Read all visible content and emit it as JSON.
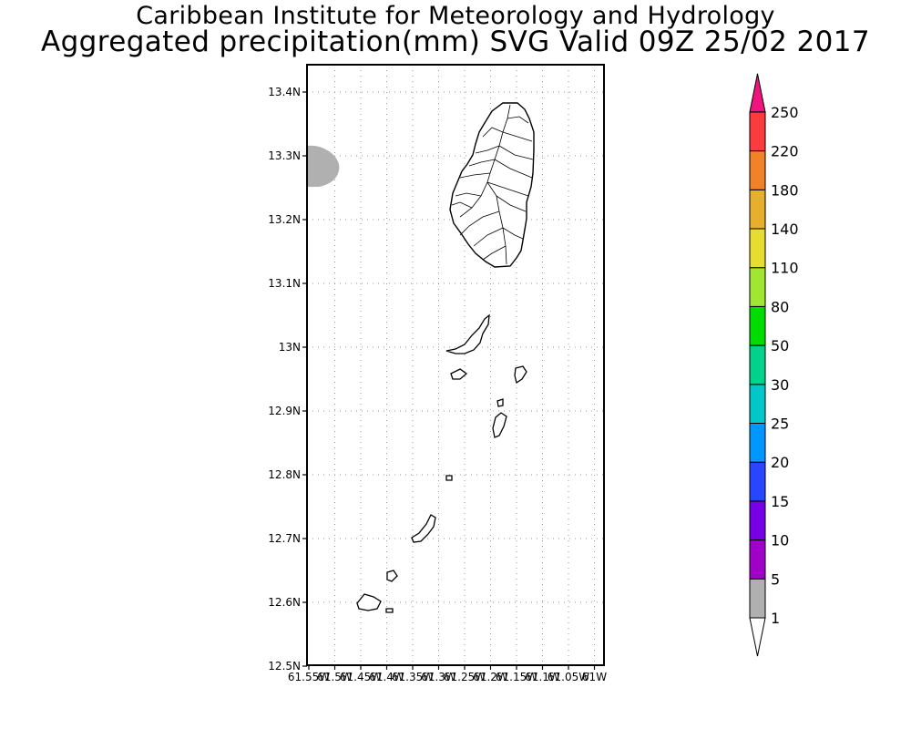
{
  "header": {
    "institution": "Caribbean Institute for Meteorology and Hydrology",
    "product": "Aggregated precipitation(mm) SVG Valid 09Z 25/02 2017"
  },
  "map": {
    "lat_ticks": [
      "13.4N",
      "13.3N",
      "13.2N",
      "13.1N",
      "13N",
      "12.9N",
      "12.8N",
      "12.7N",
      "12.6N",
      "12.5N"
    ],
    "lon_ticks": [
      "61.55W",
      "61.5W",
      "61.45W",
      "61.4W",
      "61.35W",
      "61.3W",
      "61.25W",
      "61.2W",
      "61.15W",
      "61.1W",
      "61.05W",
      "61W"
    ],
    "lat_range": [
      12.5,
      13.45
    ],
    "lon_range": [
      -61.55,
      -60.98
    ],
    "grid": true,
    "precip_area": {
      "category": "1-5",
      "color": "#b0b0b0",
      "location": "west edge near 13.29N"
    }
  },
  "colorbar": {
    "levels": [
      "1",
      "5",
      "10",
      "15",
      "20",
      "25",
      "30",
      "50",
      "80",
      "110",
      "140",
      "180",
      "220",
      "250"
    ],
    "colors": [
      "#b0b0b0",
      "#a000c8",
      "#7800e6",
      "#2846ff",
      "#0096ff",
      "#00c8c8",
      "#00d28c",
      "#00dc00",
      "#a0e632",
      "#e6dc32",
      "#e6af2d",
      "#f08228",
      "#fa3c3c",
      "#f0147f"
    ],
    "under_color": "#ffffff"
  }
}
